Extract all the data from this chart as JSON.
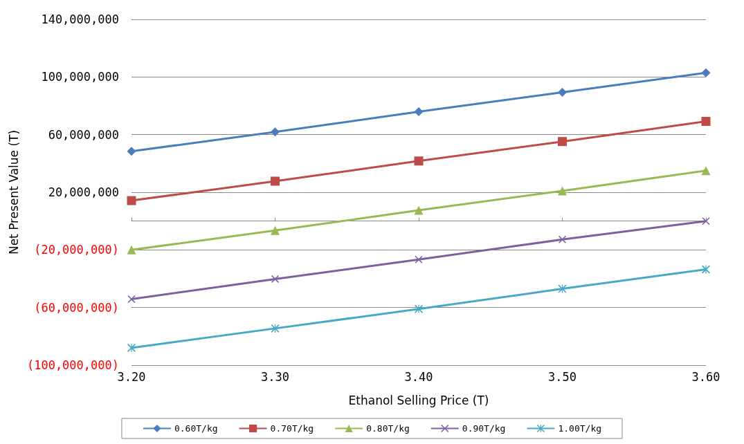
{
  "chart_data": {
    "type": "line",
    "xlabel": "Ethanol Selling Price (T)",
    "ylabel": "Net Present Value (T)",
    "x": [
      3.2,
      3.3,
      3.4,
      3.5,
      3.6
    ],
    "xlim": [
      3.2,
      3.6
    ],
    "xticks": [
      {
        "value": 3.2,
        "label": "3.20"
      },
      {
        "value": 3.3,
        "label": "3.30"
      },
      {
        "value": 3.4,
        "label": "3.40"
      },
      {
        "value": 3.5,
        "label": "3.50"
      },
      {
        "value": 3.6,
        "label": "3.60"
      }
    ],
    "ylim": [
      -100000000,
      140000000
    ],
    "yticks": [
      {
        "value": -100000000,
        "label": "(100,000,000)"
      },
      {
        "value": -60000000,
        "label": "(60,000,000)"
      },
      {
        "value": -20000000,
        "label": "(20,000,000)"
      },
      {
        "value": 20000000,
        "label": "20,000,000"
      },
      {
        "value": 60000000,
        "label": "60,000,000"
      },
      {
        "value": 100000000,
        "label": "100,000,000"
      },
      {
        "value": 140000000,
        "label": "140,000,000"
      }
    ],
    "grid": "y",
    "legend": "bottom",
    "series": [
      {
        "name": "0.60T/kg",
        "color": "#4a7ebb",
        "marker": "diamond",
        "values": [
          48400000,
          61900000,
          75900000,
          89400000,
          102900000
        ]
      },
      {
        "name": "0.70T/kg",
        "color": "#be4b48",
        "marker": "square",
        "values": [
          14200000,
          27700000,
          41700000,
          55200000,
          69200000
        ]
      },
      {
        "name": "0.80T/kg",
        "color": "#98b954",
        "marker": "triangle",
        "values": [
          -20000000,
          -6500000,
          7500000,
          21000000,
          35000000
        ]
      },
      {
        "name": "0.90T/kg",
        "color": "#7d60a0",
        "marker": "cross",
        "values": [
          -54200000,
          -40200000,
          -26700000,
          -12800000,
          0
        ]
      },
      {
        "name": "1.00T/kg",
        "color": "#46aac5",
        "marker": "star",
        "values": [
          -88000000,
          -74500000,
          -61000000,
          -47000000,
          -33500000
        ]
      }
    ]
  }
}
